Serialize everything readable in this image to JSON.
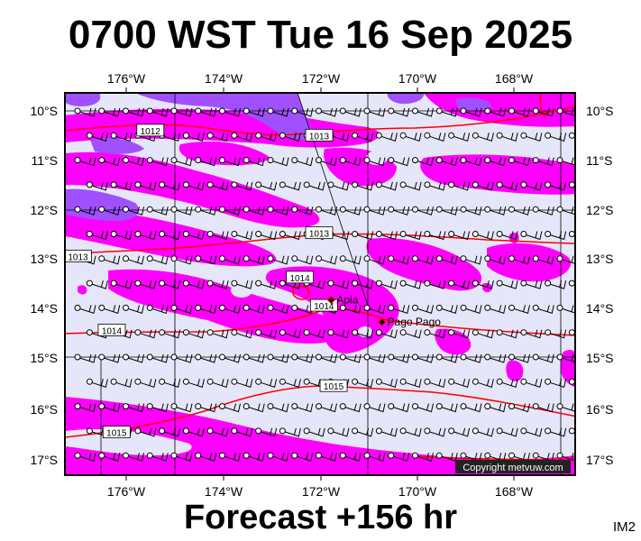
{
  "title": "0700 WST Tue 16 Sep 2025",
  "forecast": "Forecast +156 hr",
  "image_tag": "IM2",
  "copyright": "Copyright metvuw.com",
  "lon_labels": [
    "176°W",
    "174°W",
    "172°W",
    "170°W",
    "168°W"
  ],
  "lat_labels": [
    "10°S",
    "11°S",
    "12°S",
    "13°S",
    "14°S",
    "15°S",
    "16°S",
    "17°S"
  ],
  "places": [
    {
      "name": "Apia",
      "lon": -171.75,
      "lat": -13.83
    },
    {
      "name": "Pago Pago",
      "lon": -170.7,
      "lat": -14.28
    }
  ],
  "isobar_labels": [
    {
      "text": "1012",
      "lon": -175.5,
      "lat": -10.4
    },
    {
      "text": "1013",
      "lon": -172.0,
      "lat": -10.5
    },
    {
      "text": "1013",
      "lon": -172.0,
      "lat": -12.48
    },
    {
      "text": "1014",
      "lon": -172.4,
      "lat": -13.38
    },
    {
      "text": "1014",
      "lon": -171.9,
      "lat": -13.95
    },
    {
      "text": "1014",
      "lon": -176.3,
      "lat": -14.45
    },
    {
      "text": "1015",
      "lon": -171.7,
      "lat": -15.58
    },
    {
      "text": "1015",
      "lon": -176.2,
      "lat": -16.52
    },
    {
      "text": "1013",
      "lon": -177.0,
      "lat": -12.95
    }
  ],
  "colors": {
    "background": "#e6e6fa",
    "precip_light": "#ff00ff",
    "precip_heavy": "#a050ff",
    "isobar": "#ff0000",
    "wind": "#000000"
  }
}
